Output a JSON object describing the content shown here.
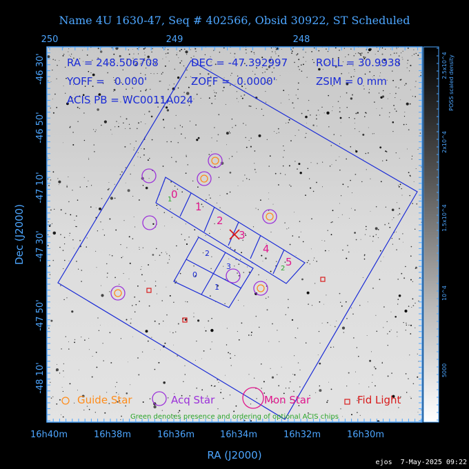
{
  "title": "Name 4U 1630-47, Seq # 402566, Obsid 30922, ST Scheduled",
  "info": {
    "ra": "RA = 248.506708",
    "dec": "DEC = -47.392997",
    "roll": "ROLL = 30.9938",
    "yoff": "YOFF =   0.000'",
    "zoff": "ZOFF =  0.0000'",
    "zsim": "ZSIM = 0 mm",
    "acis": "ACIS PB = WC0011A024"
  },
  "top_axis": {
    "ticks": [
      "250",
      "249",
      "248"
    ]
  },
  "left_axis": {
    "label": "Dec (J2000)",
    "ticks": [
      "-46 30'",
      "-46 50'",
      "-47 10'",
      "-47 30'",
      "-47 50'",
      "-48 10'"
    ]
  },
  "bottom_axis": {
    "label": "RA (J2000)",
    "ticks": [
      "16h40m",
      "16h38m",
      "16h36m",
      "16h34m",
      "16h32m",
      "16h30m"
    ]
  },
  "colorbar": {
    "label": "POSS scaled density",
    "ticks": [
      "2.5x10^4",
      "2x10^4",
      "1.5x10^4",
      "10^4",
      "5000"
    ]
  },
  "acis_i_chips": [
    "0",
    "1",
    "2",
    "3"
  ],
  "acis_s_chips": [
    "0",
    "1",
    "2",
    "3",
    "4",
    "5"
  ],
  "optional_chip_order": [
    "1",
    "2"
  ],
  "legend": {
    "guide": "Guide Star",
    "acq": "Acq Star",
    "mon": "Mon Star",
    "fid": "Fid Light",
    "note": "Green denotes presence and ordering of optional ACIS chips"
  },
  "footer": "ejos  7-May-2025 09:22",
  "colors": {
    "frame": "#4da6ff",
    "text_blue": "#1a2bd6",
    "acis_s_label": "#e0168c",
    "optional": "#2aa52a",
    "guide": "#ff8c1a",
    "acq": "#9b30d9",
    "mon": "#e0168c",
    "fid": "#d81a1a"
  },
  "icons": {
    "target": "red-x-marker",
    "guide": "orange-circle",
    "acq": "purple-circle",
    "mon": "magenta-circle",
    "fid": "red-square"
  }
}
